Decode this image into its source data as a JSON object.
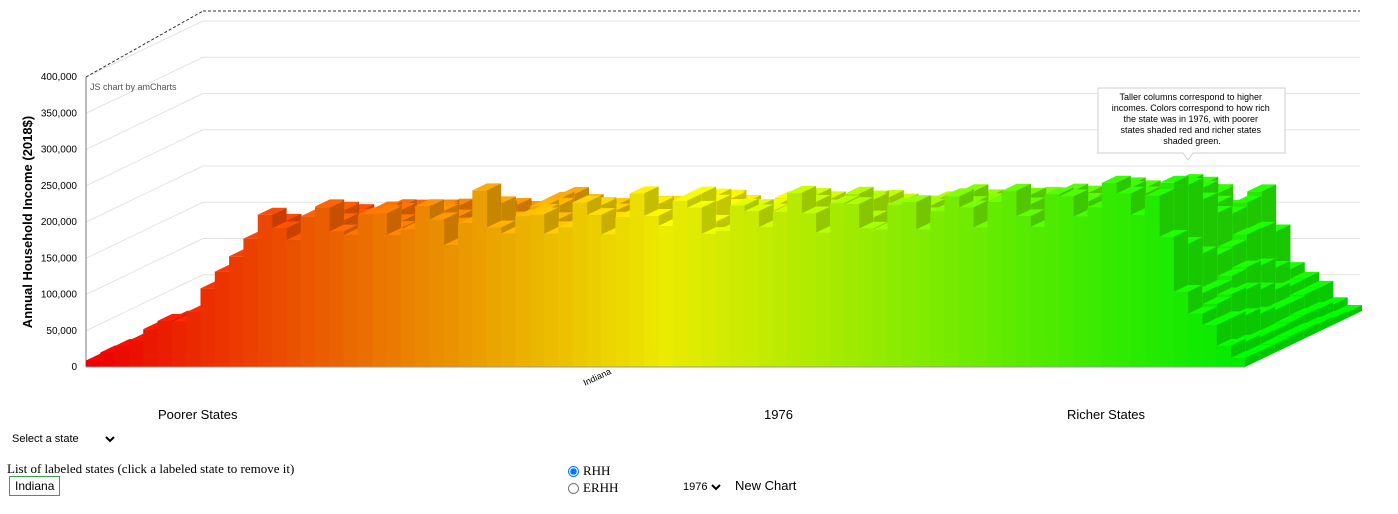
{
  "chart_data": {
    "type": "bar",
    "title": "",
    "ylabel": "Annual Household Income (2018$)",
    "ylim": [
      0,
      400000
    ],
    "yticks": [
      "0",
      "50,000",
      "100,000",
      "150,000",
      "200,000",
      "250,000",
      "300,000",
      "350,000",
      "400,000"
    ],
    "labeled_category": "Indiana",
    "color_scale": {
      "low": "#ff0000",
      "mid": "#ffff00",
      "high": "#00ff00"
    },
    "front_row_values": [
      10000,
      20000,
      33000,
      45000,
      55000,
      65000,
      75000,
      90000,
      110000,
      140000,
      190000,
      200000,
      210000,
      215000,
      218000,
      222000,
      222000,
      222000,
      220000,
      215000,
      222000,
      225000,
      218000,
      222000,
      225000,
      210000,
      215000,
      245000,
      225000,
      225000,
      215000,
      218000,
      225000,
      225000,
      228000,
      228000,
      228000,
      228000,
      240000,
      240000,
      240000,
      240000,
      225000,
      222000,
      222000,
      225000,
      230000,
      240000,
      240000,
      240000,
      240000,
      230000,
      240000,
      228000,
      228000,
      228000,
      228000,
      240000,
      235000,
      245000,
      235000,
      245000,
      240000,
      245000,
      245000,
      245000,
      235000,
      245000,
      245000,
      255000,
      255000,
      255000,
      262000,
      262000,
      258000,
      180000,
      120000,
      90000,
      60000,
      30000,
      15000
    ]
  },
  "credit": "JS chart by amCharts",
  "tooltip": {
    "lines": [
      "Taller columns correspond to higher",
      "incomes. Colors correspond to how rich",
      "the state was in 1976, with poorer",
      "states shaded red and richer states",
      "shaded green."
    ]
  },
  "axis_bottom": {
    "left": "Poorer States",
    "center": "1976",
    "right": "Richer States"
  },
  "controls": {
    "state_select": "Select a state",
    "list_label": "List of labeled states (click a labeled state to remove it)",
    "labeled_state": "Indiana",
    "radio_rhh": "RHH",
    "radio_erhh": "ERHH",
    "year": "1976",
    "new_chart": "New Chart"
  }
}
